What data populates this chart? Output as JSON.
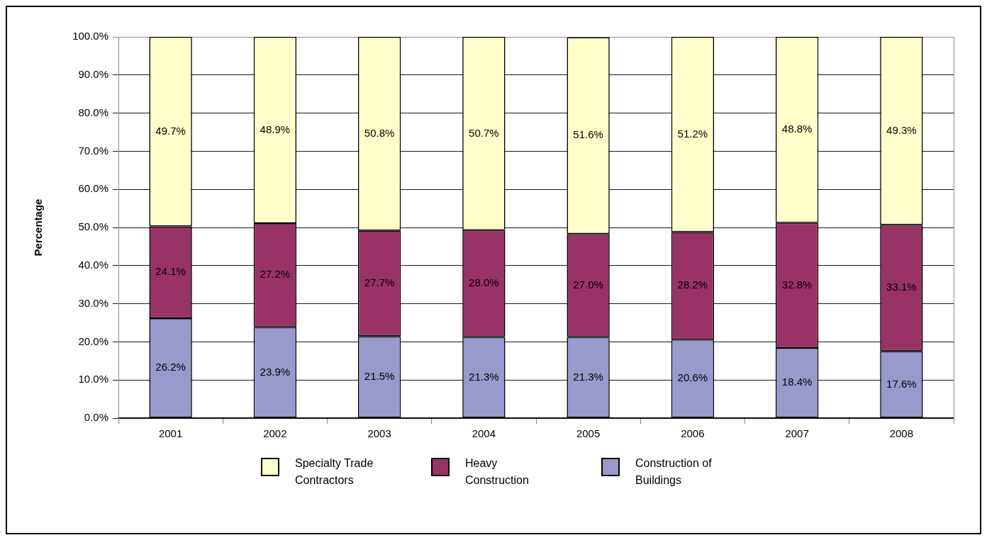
{
  "chart_data": {
    "type": "bar",
    "stacked": true,
    "ylabel": "Percentage",
    "categories": [
      "2001",
      "2002",
      "2003",
      "2004",
      "2005",
      "2006",
      "2007",
      "2008"
    ],
    "series": [
      {
        "name": "Construction of Buildings",
        "color": "#9999cc",
        "values": [
          26.2,
          23.9,
          21.5,
          21.3,
          21.3,
          20.6,
          18.4,
          17.6
        ],
        "value_labels": [
          "26.2%",
          "23.9%",
          "21.5%",
          "21.3%",
          "21.3%",
          "20.6%",
          "18.4%",
          "17.6%"
        ]
      },
      {
        "name": "Heavy Construction",
        "color": "#993366",
        "values": [
          24.1,
          27.2,
          27.7,
          28.0,
          27.0,
          28.2,
          32.8,
          33.1
        ],
        "value_labels": [
          "24.1%",
          "27.2%",
          "27.7%",
          "28.0%",
          "27.0%",
          "28.2%",
          "32.8%",
          "33.1%"
        ]
      },
      {
        "name": "Specialty Trade Contractors",
        "color": "#ffffcc",
        "values": [
          49.7,
          48.9,
          50.8,
          50.7,
          51.6,
          51.2,
          48.8,
          49.3
        ],
        "value_labels": [
          "49.7%",
          "48.9%",
          "50.8%",
          "50.7%",
          "51.6%",
          "51.2%",
          "48.8%",
          "49.3%"
        ]
      }
    ],
    "ylim": [
      0,
      100
    ],
    "yticks": [
      {
        "value": 0,
        "label": "0.0%"
      },
      {
        "value": 10,
        "label": "10.0%"
      },
      {
        "value": 20,
        "label": "20.0%"
      },
      {
        "value": 30,
        "label": "30.0%"
      },
      {
        "value": 40,
        "label": "40.0%"
      },
      {
        "value": 50,
        "label": "50.0%"
      },
      {
        "value": 60,
        "label": "60.0%"
      },
      {
        "value": 70,
        "label": "70.0%"
      },
      {
        "value": 80,
        "label": "80.0%"
      },
      {
        "value": 90,
        "label": "90.0%"
      },
      {
        "value": 100,
        "label": "100.0%"
      }
    ],
    "grid": "y",
    "legend": "bottom"
  }
}
